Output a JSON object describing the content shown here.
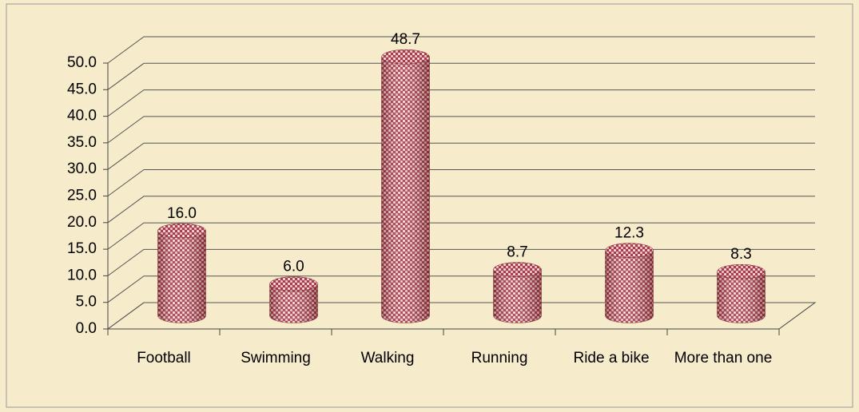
{
  "chart_data": {
    "type": "bar3d",
    "categories": [
      "Football",
      "Swimming",
      "Walking",
      "Running",
      "Ride a bike",
      "More than one"
    ],
    "values": [
      16.0,
      6.0,
      48.7,
      8.7,
      12.3,
      8.3
    ],
    "value_labels": [
      "16.0",
      "6.0",
      "48.7",
      "8.7",
      "12.3",
      "8.3"
    ],
    "color": "#b04a55",
    "ylim": [
      0,
      50
    ],
    "yticks": [
      {
        "value": 0,
        "label": "0.0"
      },
      {
        "value": 5,
        "label": "5.0"
      },
      {
        "value": 10,
        "label": "10.0"
      },
      {
        "value": 15,
        "label": "15.0"
      },
      {
        "value": 20,
        "label": "20.0"
      },
      {
        "value": 25,
        "label": "25.0"
      },
      {
        "value": 30,
        "label": "30.0"
      },
      {
        "value": 35,
        "label": "35.0"
      },
      {
        "value": 40,
        "label": "40.0"
      },
      {
        "value": 45,
        "label": "45.0"
      },
      {
        "value": 50,
        "label": "50.0"
      }
    ],
    "grid": true
  }
}
